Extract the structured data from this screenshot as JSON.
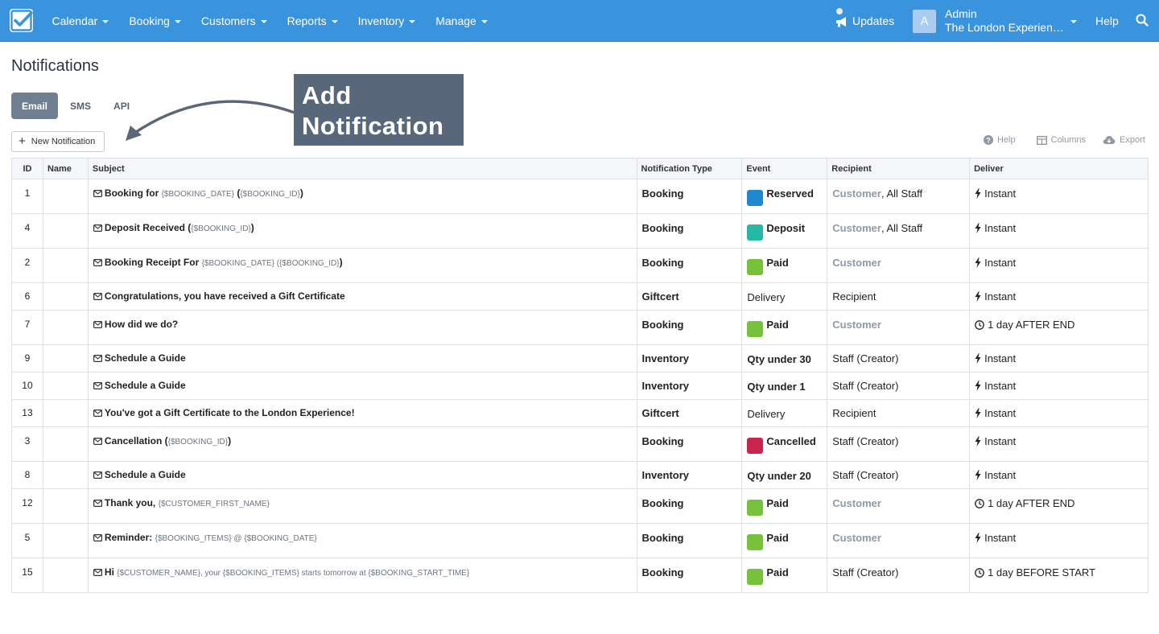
{
  "nav": {
    "menu": [
      "Calendar",
      "Booking",
      "Customers",
      "Reports",
      "Inventory",
      "Manage"
    ],
    "updates": "Updates",
    "user": {
      "avatar": "A",
      "name": "Admin",
      "company": "The London Experience"
    },
    "help": "Help",
    "icons": {
      "logo": "checkbox-logo-icon",
      "updates": "megaphone-icon",
      "search": "search-icon"
    }
  },
  "page": {
    "title": "Notifications"
  },
  "tabs": [
    {
      "label": "Email",
      "active": true
    },
    {
      "label": "SMS",
      "active": false
    },
    {
      "label": "API",
      "active": false
    }
  ],
  "toolbar": {
    "new_notification": "New Notification",
    "help": "Help",
    "columns": "Columns",
    "export": "Export"
  },
  "annotation": {
    "line1": "Add",
    "line2": "Notification"
  },
  "colors": {
    "Reserved": "#1f88cf",
    "Deposit": "#26b8a5",
    "Paid": "#78c13a",
    "Cancelled": "#c9254c",
    "nav": "#3a93dd"
  },
  "table": {
    "columns": [
      "ID",
      "Name",
      "Subject",
      "Notification Type",
      "Event",
      "Recipient",
      "Deliver"
    ],
    "rows": [
      {
        "id": "1",
        "name": "",
        "subject": [
          {
            "t": "Booking for "
          },
          {
            "t": "{$BOOKING_DATE}",
            "v": true
          },
          {
            "t": " ("
          },
          {
            "t": "{$BOOKING_ID}",
            "v": true
          },
          {
            "t": ")"
          }
        ],
        "type": "Booking",
        "event": "Reserved",
        "event_badge": "Reserved",
        "recipient": [
          {
            "t": "Customer",
            "b": true
          },
          {
            "t": ", All Staff"
          }
        ],
        "deliver": "Instant",
        "deliver_icon": "bolt",
        "h": 2
      },
      {
        "id": "4",
        "name": "",
        "subject": [
          {
            "t": "Deposit Received ("
          },
          {
            "t": "{$BOOKING_ID}",
            "v": true
          },
          {
            "t": ")"
          }
        ],
        "type": "Booking",
        "event": "Deposit",
        "event_badge": "Deposit",
        "recipient": [
          {
            "t": "Customer",
            "b": true
          },
          {
            "t": ", All Staff"
          }
        ],
        "deliver": "Instant",
        "deliver_icon": "bolt",
        "h": 2
      },
      {
        "id": "2",
        "name": "",
        "subject": [
          {
            "t": "Booking Receipt For "
          },
          {
            "t": "{$BOOKING_DATE} (",
            "v": true
          },
          {
            "t": "{$BOOKING_ID}",
            "v": true
          },
          {
            "t": ")"
          }
        ],
        "type": "Booking",
        "event": "Paid",
        "event_badge": "Paid",
        "recipient": [
          {
            "t": "Customer",
            "b": true
          }
        ],
        "deliver": "Instant",
        "deliver_icon": "bolt",
        "h": 2
      },
      {
        "id": "6",
        "name": "",
        "subject": [
          {
            "t": "Congratulations, you have received a Gift Certificate"
          }
        ],
        "type": "Giftcert",
        "event": "Delivery",
        "event_badge": "",
        "recipient": [
          {
            "t": "Recipient"
          }
        ],
        "deliver": "Instant",
        "deliver_icon": "bolt",
        "h": 1
      },
      {
        "id": "7",
        "name": "",
        "subject": [
          {
            "t": "How did we do?"
          }
        ],
        "type": "Booking",
        "event": "Paid",
        "event_badge": "Paid",
        "recipient": [
          {
            "t": "Customer",
            "b": true
          }
        ],
        "deliver": "1 day AFTER END",
        "deliver_icon": "clock",
        "h": 2
      },
      {
        "id": "9",
        "name": "",
        "subject": [
          {
            "t": "Schedule a Guide"
          }
        ],
        "type": "Inventory",
        "event": "Qty under 30",
        "event_badge": "",
        "event_bold": true,
        "recipient": [
          {
            "t": "Staff (Creator)"
          }
        ],
        "deliver": "Instant",
        "deliver_icon": "bolt",
        "h": 1
      },
      {
        "id": "10",
        "name": "",
        "subject": [
          {
            "t": "Schedule a Guide"
          }
        ],
        "type": "Inventory",
        "event": "Qty under 1",
        "event_badge": "",
        "event_bold": true,
        "recipient": [
          {
            "t": "Staff (Creator)"
          }
        ],
        "deliver": "Instant",
        "deliver_icon": "bolt",
        "h": 1
      },
      {
        "id": "13",
        "name": "",
        "subject": [
          {
            "t": "You've got a Gift Certificate to the London Experience!"
          }
        ],
        "type": "Giftcert",
        "event": "Delivery",
        "event_badge": "",
        "recipient": [
          {
            "t": "Recipient"
          }
        ],
        "deliver": "Instant",
        "deliver_icon": "bolt",
        "h": 1
      },
      {
        "id": "3",
        "name": "",
        "subject": [
          {
            "t": "Cancellation ("
          },
          {
            "t": "{$BOOKING_ID}",
            "v": true
          },
          {
            "t": ")"
          }
        ],
        "type": "Booking",
        "event": "Cancelled",
        "event_badge": "Cancelled",
        "recipient": [
          {
            "t": "Staff (Creator)"
          }
        ],
        "deliver": "Instant",
        "deliver_icon": "bolt",
        "h": 2
      },
      {
        "id": "8",
        "name": "",
        "subject": [
          {
            "t": "Schedule a Guide"
          }
        ],
        "type": "Inventory",
        "event": "Qty under 20",
        "event_badge": "",
        "event_bold": true,
        "recipient": [
          {
            "t": "Staff (Creator)"
          }
        ],
        "deliver": "Instant",
        "deliver_icon": "bolt",
        "h": 1
      },
      {
        "id": "12",
        "name": "",
        "subject": [
          {
            "t": "Thank you, "
          },
          {
            "t": "{$CUSTOMER_FIRST_NAME}",
            "v": true
          }
        ],
        "type": "Booking",
        "event": "Paid",
        "event_badge": "Paid",
        "recipient": [
          {
            "t": "Customer",
            "b": true
          }
        ],
        "deliver": "1 day AFTER END",
        "deliver_icon": "clock",
        "h": 2
      },
      {
        "id": "5",
        "name": "",
        "subject": [
          {
            "t": "Reminder: "
          },
          {
            "t": "{$BOOKING_ITEMS} @ {$BOOKING_DATE}",
            "v": true
          }
        ],
        "type": "Booking",
        "event": "Paid",
        "event_badge": "Paid",
        "recipient": [
          {
            "t": "Customer",
            "b": true
          }
        ],
        "deliver": "Instant",
        "deliver_icon": "bolt",
        "h": 2
      },
      {
        "id": "15",
        "name": "",
        "subject": [
          {
            "t": "Hi "
          },
          {
            "t": "{$CUSTOMER_NAME}, your {$BOOKING_ITEMS} starts tomorrow at {$BOOKING_START_TIME}",
            "v": true
          }
        ],
        "type": "Booking",
        "event": "Paid",
        "event_badge": "Paid",
        "recipient": [
          {
            "t": "Staff (Creator)"
          }
        ],
        "deliver": "1 day BEFORE START",
        "deliver_icon": "clock",
        "h": 2
      }
    ]
  }
}
